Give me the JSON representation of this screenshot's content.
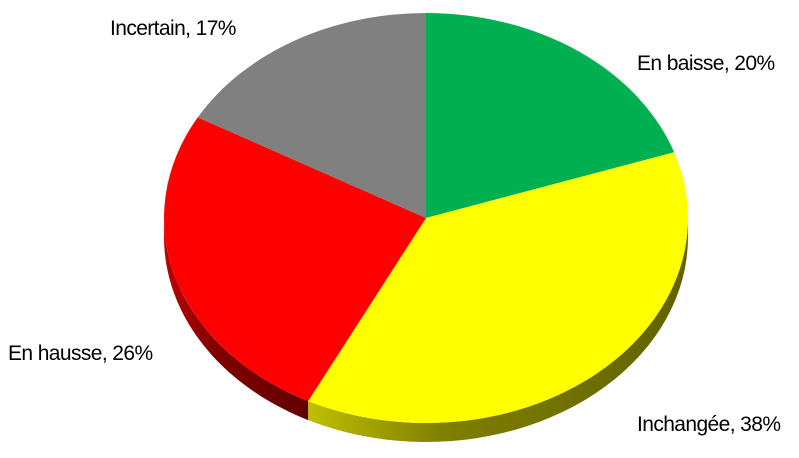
{
  "chart_data": {
    "type": "pie",
    "title": "",
    "slices": [
      {
        "label": "En baisse",
        "value": 20,
        "color": "#00b050",
        "text": "En baisse, 20%"
      },
      {
        "label": "Inchangée",
        "value": 38,
        "color": "#ffff00",
        "text": "Inchangée, 38%"
      },
      {
        "label": "En hausse",
        "value": 26,
        "color": "#ff0000",
        "text": "En hausse, 26%"
      },
      {
        "label": "Incertain",
        "value": 17,
        "color": "#808080",
        "text": "Incertain, 17%"
      }
    ]
  }
}
